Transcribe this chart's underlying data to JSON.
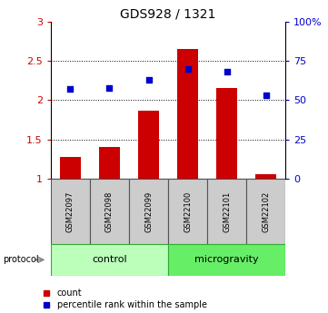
{
  "title": "GDS928 / 1321",
  "samples": [
    "GSM22097",
    "GSM22098",
    "GSM22099",
    "GSM22100",
    "GSM22101",
    "GSM22102"
  ],
  "bar_values": [
    1.27,
    1.4,
    1.87,
    2.65,
    2.15,
    1.05
  ],
  "scatter_values": [
    57,
    58,
    63,
    70,
    68,
    53
  ],
  "bar_color": "#cc0000",
  "scatter_color": "#0000cc",
  "ylim_left": [
    1.0,
    3.0
  ],
  "ylim_right": [
    0,
    100
  ],
  "yticks_left": [
    1.0,
    1.5,
    2.0,
    2.5,
    3.0
  ],
  "ytick_labels_left": [
    "1",
    "1.5",
    "2",
    "2.5",
    "3"
  ],
  "yticks_right": [
    0,
    25,
    50,
    75,
    100
  ],
  "ytick_labels_right": [
    "0",
    "25",
    "50",
    "75",
    "100%"
  ],
  "groups": [
    {
      "label": "control",
      "indices": [
        0,
        1,
        2
      ],
      "color": "#bbffbb"
    },
    {
      "label": "microgravity",
      "indices": [
        3,
        4,
        5
      ],
      "color": "#66ee66"
    }
  ],
  "protocol_label": "protocol",
  "legend_items": [
    {
      "label": "count",
      "color": "#cc0000",
      "marker": "s"
    },
    {
      "label": "percentile rank within the sample",
      "color": "#0000cc",
      "marker": "s"
    }
  ],
  "title_fontsize": 10,
  "axis_label_color_left": "#cc0000",
  "axis_label_color_right": "#0000cc",
  "label_fontsize": 8,
  "sample_fontsize": 6,
  "group_fontsize": 8,
  "legend_fontsize": 7,
  "bar_width": 0.55
}
